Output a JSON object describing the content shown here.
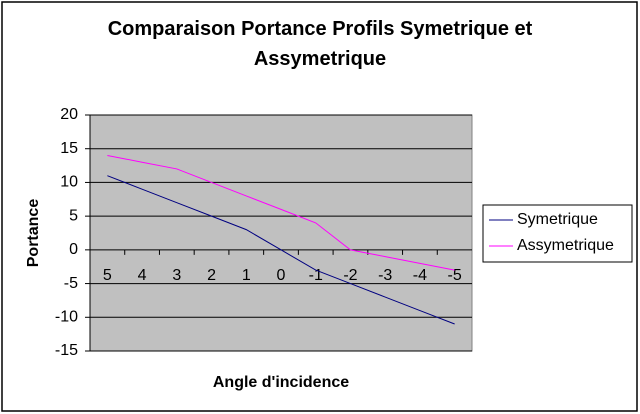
{
  "chart_data": {
    "type": "line",
    "title": "Comparaison Portance Profils Symetrique et Assymetrique",
    "x_label": "Angle d'incidence",
    "y_label": "Portance",
    "categories": [
      "5",
      "4",
      "3",
      "2",
      "1",
      "0",
      "-1",
      "-2",
      "-3",
      "-4",
      "-5"
    ],
    "series": [
      {
        "name": "Symetrique",
        "color": "#000080",
        "values": [
          11,
          9,
          7,
          5,
          3,
          0,
          -3,
          -5,
          -7,
          -9,
          -11
        ]
      },
      {
        "name": "Assymetrique",
        "color": "#ff00ff",
        "values": [
          14,
          13,
          12,
          10,
          8,
          6,
          4,
          0,
          -1,
          -2,
          -3
        ]
      }
    ],
    "ylim": [
      -15,
      20
    ],
    "yticks": [
      -15,
      -10,
      -5,
      0,
      5,
      10,
      15,
      20
    ],
    "grid": true,
    "legend": "right"
  }
}
